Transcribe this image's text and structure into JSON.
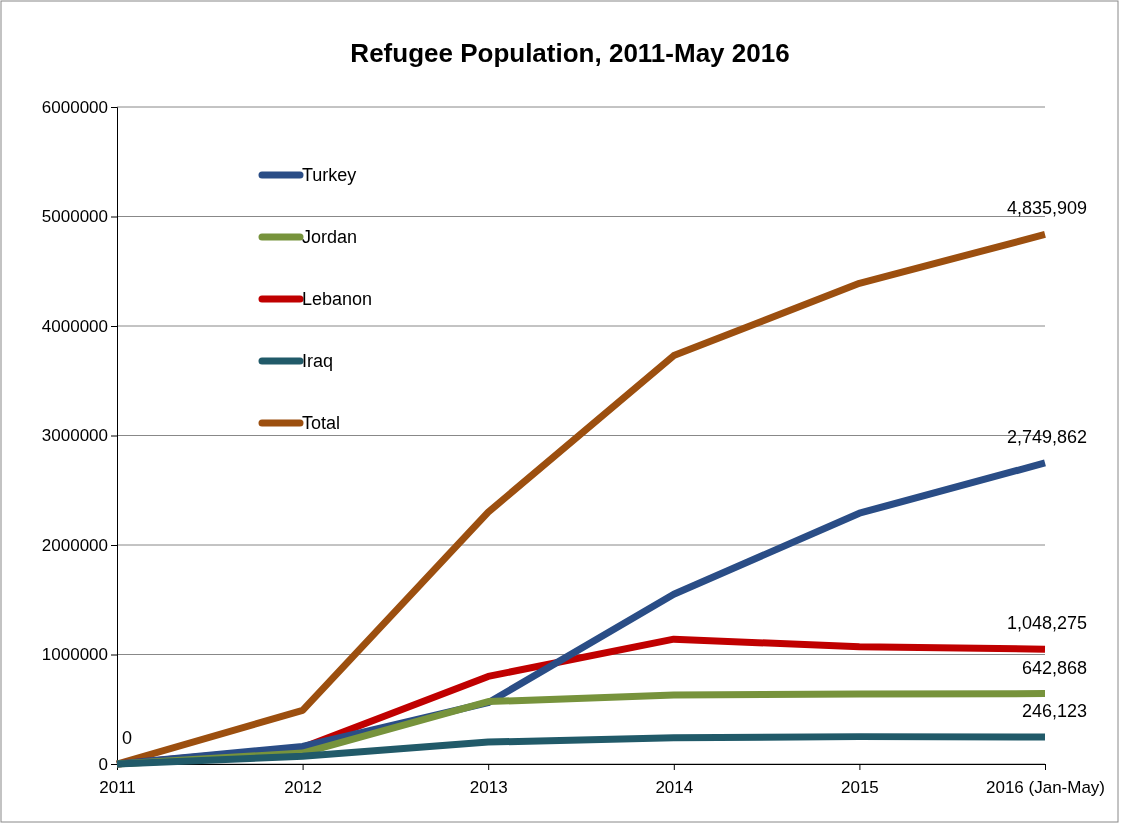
{
  "chart_data": {
    "type": "line",
    "title": "Refugee Population, 2011-May 2016",
    "categories": [
      "2011",
      "2012",
      "2013",
      "2014",
      "2015",
      "2016 (Jan-May)"
    ],
    "series": [
      {
        "name": "Turkey",
        "color": "#2a4d86",
        "values": [
          0,
          160000,
          560000,
          1550000,
          2290000,
          2749862
        ],
        "value_labels": [
          null,
          null,
          null,
          null,
          null,
          "2,749,862"
        ]
      },
      {
        "name": "Jordan",
        "color": "#77933c",
        "values": [
          0,
          100000,
          570000,
          630000,
          640000,
          642868
        ],
        "value_labels": [
          null,
          null,
          null,
          null,
          null,
          "642,868"
        ]
      },
      {
        "name": "Lebanon",
        "color": "#c00000",
        "values": [
          0,
          150000,
          800000,
          1140000,
          1070000,
          1048275
        ],
        "value_labels": [
          null,
          null,
          null,
          null,
          null,
          "1,048,275"
        ]
      },
      {
        "name": "Iraq",
        "color": "#215a69",
        "values": [
          0,
          70000,
          200000,
          240000,
          250000,
          246123
        ],
        "value_labels": [
          null,
          null,
          null,
          null,
          null,
          "246,123"
        ]
      },
      {
        "name": "Total",
        "color": "#9c4f0f",
        "values": [
          0,
          490000,
          2300000,
          3730000,
          4390000,
          4835909
        ],
        "value_labels": [
          "0",
          null,
          null,
          null,
          null,
          "4,835,909"
        ]
      }
    ],
    "ylim": [
      0,
      6000000
    ],
    "yticks": [
      0,
      1000000,
      2000000,
      3000000,
      4000000,
      5000000,
      6000000
    ],
    "grid": "y",
    "legend": "top left",
    "marker": "none",
    "line_style": "solid"
  }
}
